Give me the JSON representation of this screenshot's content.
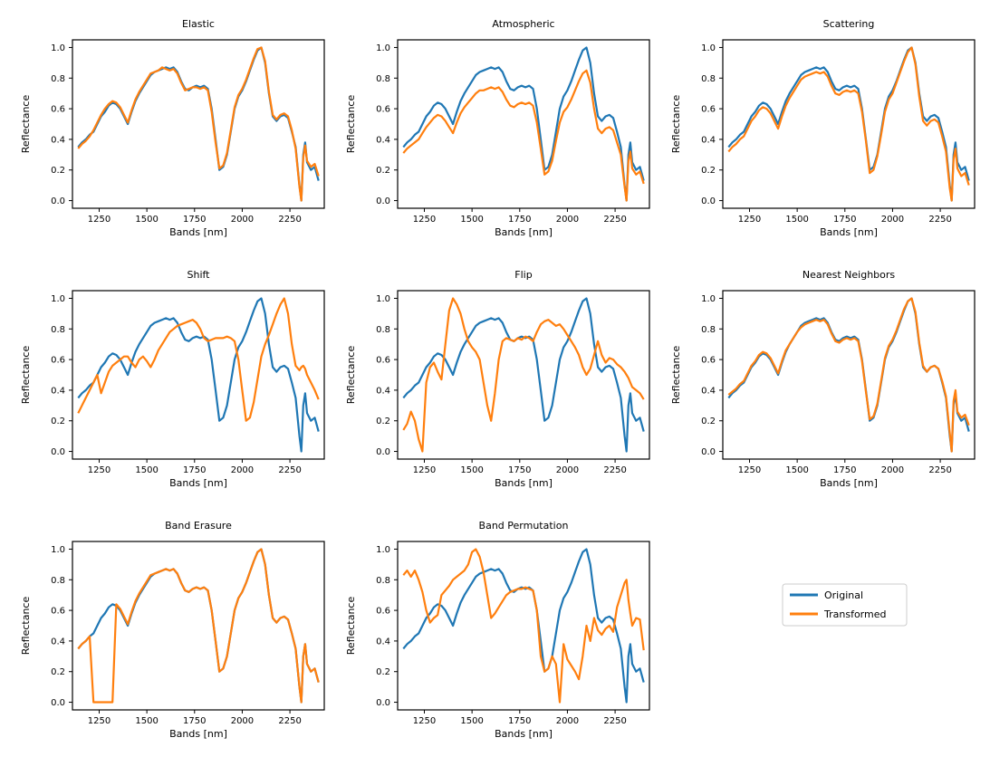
{
  "chart_data": {
    "type": "line",
    "xlabel": "Bands [nm]",
    "ylabel": "Reflectance",
    "xlim": [
      1110,
      2430
    ],
    "ylim": [
      -0.05,
      1.05
    ],
    "xticks": [
      1250,
      1500,
      1750,
      2000,
      2250
    ],
    "yticks": [
      0.0,
      0.2,
      0.4,
      0.6,
      0.8,
      1.0
    ],
    "tick_labels_x": [
      "1250",
      "1500",
      "1750",
      "2000",
      "2250"
    ],
    "tick_labels_y": [
      "0.0",
      "0.2",
      "0.4",
      "0.6",
      "0.8",
      "1.0"
    ],
    "legend": {
      "placement": "lower-right empty panel",
      "entries": [
        {
          "label": "Original",
          "color": "#1f77b4"
        },
        {
          "label": "Transformed",
          "color": "#ff7f0e"
        }
      ]
    },
    "original": {
      "name": "Original",
      "color": "#1f77b4",
      "x": [
        1140,
        1160,
        1180,
        1200,
        1220,
        1240,
        1260,
        1280,
        1300,
        1320,
        1340,
        1360,
        1380,
        1400,
        1420,
        1440,
        1460,
        1480,
        1500,
        1520,
        1540,
        1560,
        1580,
        1600,
        1620,
        1640,
        1660,
        1680,
        1700,
        1720,
        1740,
        1760,
        1780,
        1800,
        1820,
        1840,
        1860,
        1880,
        1900,
        1920,
        1940,
        1960,
        1980,
        2000,
        2020,
        2040,
        2060,
        2080,
        2100,
        2120,
        2140,
        2160,
        2180,
        2200,
        2220,
        2240,
        2260,
        2280,
        2300,
        2310,
        2320,
        2330,
        2340,
        2360,
        2380,
        2400
      ],
      "y": [
        0.35,
        0.38,
        0.4,
        0.43,
        0.45,
        0.5,
        0.55,
        0.58,
        0.62,
        0.64,
        0.63,
        0.6,
        0.55,
        0.5,
        0.58,
        0.65,
        0.7,
        0.74,
        0.78,
        0.82,
        0.84,
        0.85,
        0.86,
        0.87,
        0.86,
        0.87,
        0.84,
        0.78,
        0.73,
        0.72,
        0.74,
        0.75,
        0.74,
        0.75,
        0.73,
        0.6,
        0.4,
        0.2,
        0.22,
        0.3,
        0.45,
        0.6,
        0.68,
        0.72,
        0.78,
        0.85,
        0.92,
        0.98,
        1.0,
        0.9,
        0.7,
        0.55,
        0.52,
        0.55,
        0.56,
        0.54,
        0.45,
        0.35,
        0.1,
        0.0,
        0.3,
        0.38,
        0.25,
        0.2,
        0.22,
        0.13
      ]
    },
    "panels": [
      {
        "title": "Elastic",
        "transformed": [
          0.34,
          0.37,
          0.39,
          0.42,
          0.46,
          0.51,
          0.56,
          0.6,
          0.63,
          0.65,
          0.64,
          0.61,
          0.56,
          0.51,
          0.59,
          0.66,
          0.71,
          0.75,
          0.79,
          0.83,
          0.84,
          0.85,
          0.87,
          0.86,
          0.85,
          0.86,
          0.83,
          0.77,
          0.72,
          0.73,
          0.74,
          0.74,
          0.73,
          0.74,
          0.72,
          0.58,
          0.38,
          0.21,
          0.23,
          0.31,
          0.46,
          0.61,
          0.69,
          0.73,
          0.79,
          0.86,
          0.93,
          0.99,
          1.0,
          0.91,
          0.71,
          0.56,
          0.53,
          0.56,
          0.57,
          0.55,
          0.46,
          0.34,
          0.09,
          0.0,
          0.28,
          0.36,
          0.26,
          0.22,
          0.24,
          0.16
        ]
      },
      {
        "title": "Atmospheric",
        "transformed": [
          0.31,
          0.34,
          0.36,
          0.38,
          0.4,
          0.44,
          0.48,
          0.51,
          0.54,
          0.56,
          0.55,
          0.52,
          0.48,
          0.44,
          0.51,
          0.57,
          0.61,
          0.64,
          0.67,
          0.7,
          0.72,
          0.72,
          0.73,
          0.74,
          0.73,
          0.74,
          0.71,
          0.66,
          0.62,
          0.61,
          0.63,
          0.64,
          0.63,
          0.64,
          0.62,
          0.51,
          0.34,
          0.17,
          0.19,
          0.26,
          0.39,
          0.51,
          0.58,
          0.61,
          0.66,
          0.72,
          0.78,
          0.83,
          0.85,
          0.77,
          0.6,
          0.47,
          0.44,
          0.47,
          0.48,
          0.46,
          0.38,
          0.3,
          0.09,
          0.0,
          0.26,
          0.32,
          0.21,
          0.17,
          0.19,
          0.11
        ]
      },
      {
        "title": "Scattering",
        "transformed": [
          0.32,
          0.35,
          0.37,
          0.4,
          0.42,
          0.47,
          0.52,
          0.55,
          0.59,
          0.61,
          0.6,
          0.57,
          0.52,
          0.47,
          0.55,
          0.62,
          0.67,
          0.71,
          0.75,
          0.79,
          0.81,
          0.82,
          0.83,
          0.84,
          0.83,
          0.84,
          0.81,
          0.75,
          0.7,
          0.69,
          0.71,
          0.72,
          0.71,
          0.72,
          0.7,
          0.58,
          0.39,
          0.18,
          0.2,
          0.29,
          0.43,
          0.58,
          0.66,
          0.7,
          0.77,
          0.84,
          0.91,
          0.97,
          1.0,
          0.89,
          0.68,
          0.52,
          0.49,
          0.52,
          0.53,
          0.51,
          0.42,
          0.32,
          0.08,
          0.0,
          0.27,
          0.34,
          0.21,
          0.16,
          0.18,
          0.1
        ]
      },
      {
        "title": "Shift",
        "transformed": [
          0.25,
          0.3,
          0.35,
          0.4,
          0.45,
          0.5,
          0.38,
          0.45,
          0.52,
          0.56,
          0.58,
          0.6,
          0.62,
          0.62,
          0.58,
          0.55,
          0.6,
          0.62,
          0.59,
          0.55,
          0.6,
          0.66,
          0.7,
          0.74,
          0.78,
          0.8,
          0.82,
          0.83,
          0.84,
          0.85,
          0.86,
          0.84,
          0.8,
          0.74,
          0.72,
          0.73,
          0.74,
          0.74,
          0.74,
          0.75,
          0.74,
          0.72,
          0.6,
          0.4,
          0.2,
          0.22,
          0.32,
          0.47,
          0.62,
          0.7,
          0.76,
          0.83,
          0.9,
          0.96,
          1.0,
          0.9,
          0.7,
          0.56,
          0.53,
          0.55,
          0.56,
          0.54,
          0.5,
          0.45,
          0.4,
          0.34
        ]
      },
      {
        "title": "Flip",
        "transformed": [
          0.14,
          0.18,
          0.26,
          0.2,
          0.08,
          0.0,
          0.45,
          0.55,
          0.58,
          0.52,
          0.47,
          0.7,
          0.92,
          1.0,
          0.96,
          0.9,
          0.8,
          0.72,
          0.68,
          0.65,
          0.6,
          0.45,
          0.3,
          0.2,
          0.38,
          0.6,
          0.72,
          0.74,
          0.73,
          0.72,
          0.74,
          0.73,
          0.75,
          0.74,
          0.72,
          0.78,
          0.83,
          0.85,
          0.86,
          0.84,
          0.82,
          0.83,
          0.8,
          0.76,
          0.72,
          0.68,
          0.63,
          0.55,
          0.5,
          0.54,
          0.63,
          0.72,
          0.63,
          0.58,
          0.61,
          0.6,
          0.57,
          0.55,
          0.52,
          0.5,
          0.48,
          0.45,
          0.42,
          0.4,
          0.38,
          0.34
        ]
      },
      {
        "title": "Nearest Neighbors",
        "transformed": [
          0.37,
          0.39,
          0.41,
          0.44,
          0.46,
          0.51,
          0.56,
          0.59,
          0.63,
          0.65,
          0.64,
          0.61,
          0.56,
          0.51,
          0.59,
          0.66,
          0.7,
          0.74,
          0.78,
          0.81,
          0.83,
          0.84,
          0.85,
          0.86,
          0.85,
          0.86,
          0.83,
          0.77,
          0.72,
          0.71,
          0.73,
          0.74,
          0.73,
          0.74,
          0.72,
          0.59,
          0.39,
          0.21,
          0.23,
          0.31,
          0.46,
          0.61,
          0.69,
          0.73,
          0.79,
          0.86,
          0.93,
          0.98,
          1.0,
          0.91,
          0.71,
          0.56,
          0.52,
          0.55,
          0.56,
          0.54,
          0.46,
          0.36,
          0.12,
          0.0,
          0.33,
          0.4,
          0.26,
          0.22,
          0.24,
          0.17
        ]
      },
      {
        "title": "Band Erasure",
        "transformed": [
          0.35,
          0.38,
          0.4,
          0.43,
          0.0,
          0.0,
          0.0,
          0.0,
          0.0,
          0.0,
          0.64,
          0.61,
          0.56,
          0.51,
          0.59,
          0.66,
          0.71,
          0.75,
          0.79,
          0.83,
          0.84,
          0.85,
          0.86,
          0.87,
          0.86,
          0.87,
          0.84,
          0.78,
          0.73,
          0.72,
          0.74,
          0.75,
          0.74,
          0.75,
          0.73,
          0.6,
          0.4,
          0.2,
          0.22,
          0.3,
          0.45,
          0.6,
          0.68,
          0.72,
          0.78,
          0.85,
          0.92,
          0.98,
          1.0,
          0.9,
          0.7,
          0.55,
          0.52,
          0.55,
          0.56,
          0.54,
          0.45,
          0.35,
          0.1,
          0.0,
          0.3,
          0.38,
          0.25,
          0.2,
          0.22,
          0.13
        ]
      },
      {
        "title": "Band Permutation",
        "transformed": [
          0.83,
          0.86,
          0.82,
          0.86,
          0.8,
          0.72,
          0.6,
          0.52,
          0.55,
          0.57,
          0.7,
          0.73,
          0.76,
          0.8,
          0.82,
          0.84,
          0.86,
          0.9,
          0.98,
          1.0,
          0.95,
          0.85,
          0.7,
          0.55,
          0.58,
          0.62,
          0.66,
          0.7,
          0.72,
          0.73,
          0.74,
          0.74,
          0.75,
          0.74,
          0.73,
          0.6,
          0.3,
          0.2,
          0.22,
          0.3,
          0.25,
          0.0,
          0.38,
          0.28,
          0.24,
          0.2,
          0.15,
          0.3,
          0.5,
          0.4,
          0.55,
          0.47,
          0.44,
          0.48,
          0.5,
          0.46,
          0.62,
          0.7,
          0.78,
          0.8,
          0.67,
          0.58,
          0.5,
          0.55,
          0.54,
          0.34
        ]
      }
    ]
  }
}
